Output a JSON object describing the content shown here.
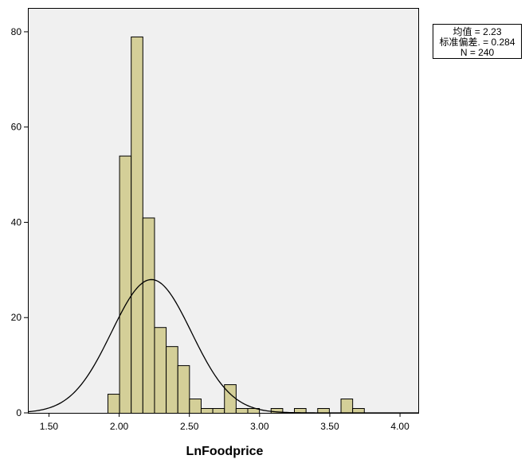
{
  "chart_data": {
    "type": "bar",
    "subtype": "histogram",
    "xlabel": "LnFoodprice",
    "ylabel": "",
    "xlim": [
      1.35,
      4.13
    ],
    "ylim": [
      0,
      85
    ],
    "xticks": [
      "1.50",
      "2.00",
      "2.50",
      "3.00",
      "3.50",
      "4.00"
    ],
    "yticks": [
      "0",
      "20",
      "40",
      "60",
      "80"
    ],
    "bin_width": 0.083,
    "bins": [
      {
        "start": 1.917,
        "count": 4
      },
      {
        "start": 2.0,
        "count": 54
      },
      {
        "start": 2.083,
        "count": 79
      },
      {
        "start": 2.166,
        "count": 41
      },
      {
        "start": 2.249,
        "count": 18
      },
      {
        "start": 2.332,
        "count": 14
      },
      {
        "start": 2.415,
        "count": 10
      },
      {
        "start": 2.498,
        "count": 3
      },
      {
        "start": 2.581,
        "count": 1
      },
      {
        "start": 2.664,
        "count": 1
      },
      {
        "start": 2.747,
        "count": 6
      },
      {
        "start": 2.83,
        "count": 1
      },
      {
        "start": 2.913,
        "count": 1
      },
      {
        "start": 3.079,
        "count": 1
      },
      {
        "start": 3.245,
        "count": 1
      },
      {
        "start": 3.411,
        "count": 1
      },
      {
        "start": 3.577,
        "count": 3
      },
      {
        "start": 3.66,
        "count": 1
      }
    ],
    "normal_curve": {
      "mean": 2.23,
      "sd": 0.284,
      "n": 240
    },
    "bar_color": "#d4cf98",
    "plot_background": "#f0f0f0",
    "grid": false,
    "stats_legend": {
      "mean_line": "均值 = 2.23",
      "sd_line": "标准偏差. = 0.284",
      "n_line": "N = 240"
    },
    "legend_position": "top-right"
  }
}
